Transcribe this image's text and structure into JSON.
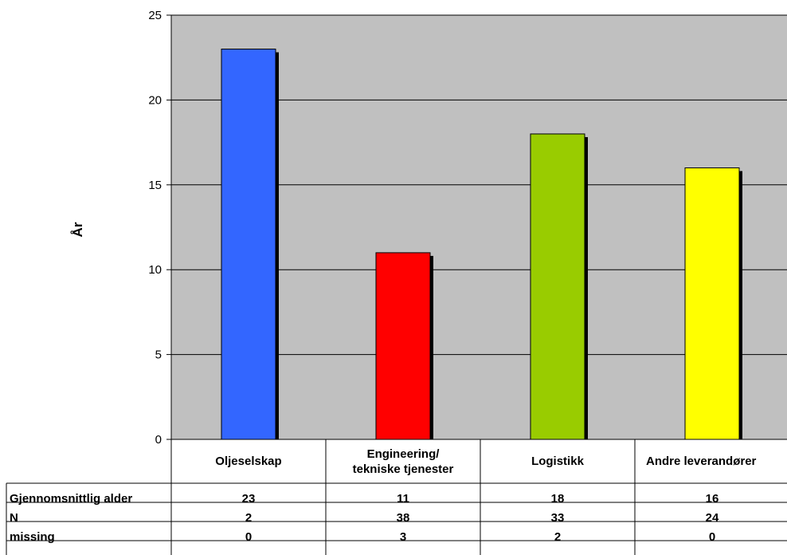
{
  "chart_data": {
    "type": "bar",
    "ylabel": "År",
    "xlabel": "",
    "ylim": [
      0,
      25
    ],
    "yticks": [
      0,
      5,
      10,
      15,
      20,
      25
    ],
    "grid": true,
    "categories": [
      "Oljeselskap",
      "Engineering/\ntekniske tjenester",
      "Logistikk",
      "Andre leverandører"
    ],
    "values": [
      23,
      11,
      18,
      16
    ],
    "bar_colors": [
      "#3366ff",
      "#ff0000",
      "#99cc00",
      "#ffff00"
    ],
    "plot_background": "#c0c0c0",
    "table": {
      "rows": [
        {
          "label": "Gjennomsnittlig alder",
          "values": [
            "23",
            "11",
            "18",
            "16"
          ]
        },
        {
          "label": "N",
          "values": [
            "2",
            "38",
            "33",
            "24"
          ]
        },
        {
          "label": "missing",
          "values": [
            "0",
            "3",
            "2",
            "0"
          ]
        }
      ]
    }
  }
}
